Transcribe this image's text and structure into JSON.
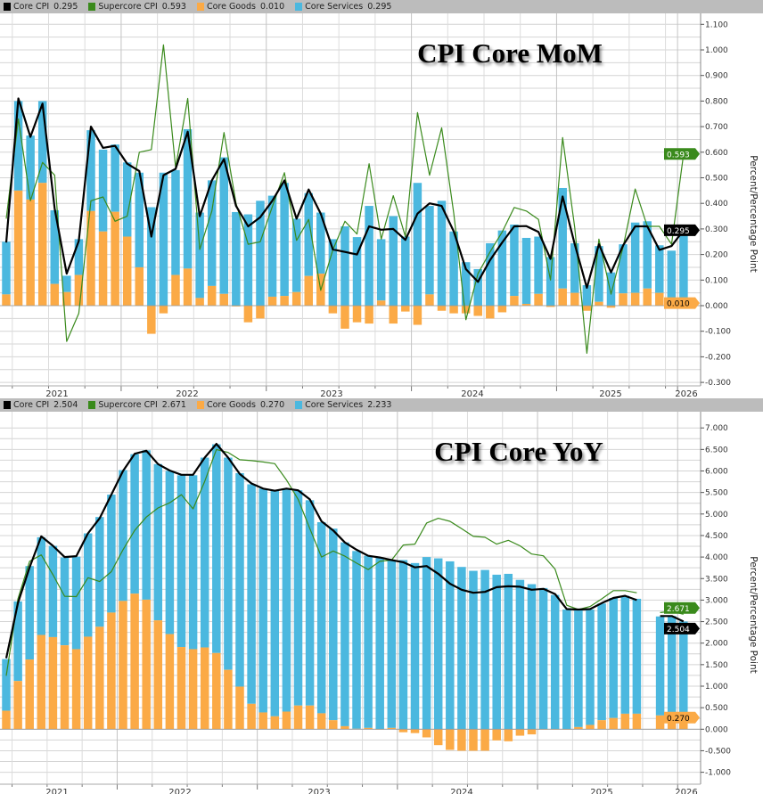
{
  "colors": {
    "core_cpi": "#000000",
    "supercore_cpi": "#3a8a1c",
    "core_goods": "#fbaa46",
    "core_services": "#4bb8df",
    "legend_bg": "#bcbcbc"
  },
  "chart_data": [
    {
      "type": "bar",
      "title": "CPI Core MoM",
      "ylabel": "Percent/Percentage Point",
      "ylim": [
        -0.3,
        1.1
      ],
      "yticks": [
        "1.100",
        "1.000",
        "0.900",
        "0.800",
        "0.700",
        "0.600",
        "0.500",
        "0.400",
        "0.300",
        "0.200",
        "0.100",
        "0.000",
        "-0.100",
        "-0.200",
        "-0.300"
      ],
      "xtick_labels": [
        "2021",
        "2022",
        "2023",
        "2024",
        "2025",
        "2026"
      ],
      "grid": true,
      "stacked": true,
      "legend": {
        "position": "top",
        "items": [
          {
            "name": "Core CPI",
            "value": "0.295"
          },
          {
            "name": "Supercore CPI",
            "value": "0.593"
          },
          {
            "name": "Core Goods",
            "value": "0.010"
          },
          {
            "name": "Core Services",
            "value": "0.295"
          }
        ]
      },
      "last_value_tags": {
        "supercore_cpi": "0.593",
        "core_cpi": "0.295",
        "core_goods": "0.010"
      },
      "x": [
        "2021-03",
        "2021-04",
        "2021-05",
        "2021-06",
        "2021-07",
        "2021-08",
        "2021-09",
        "2021-10",
        "2021-11",
        "2021-12",
        "2022-01",
        "2022-02",
        "2022-03",
        "2022-04",
        "2022-05",
        "2022-06",
        "2022-07",
        "2022-08",
        "2022-09",
        "2022-10",
        "2022-11",
        "2022-12",
        "2023-01",
        "2023-02",
        "2023-03",
        "2023-04",
        "2023-05",
        "2023-06",
        "2023-07",
        "2023-08",
        "2023-09",
        "2023-10",
        "2023-11",
        "2023-12",
        "2024-01",
        "2024-02",
        "2024-03",
        "2024-04",
        "2024-05",
        "2024-06",
        "2024-07",
        "2024-08",
        "2024-09",
        "2024-10",
        "2024-11",
        "2024-12",
        "2025-01",
        "2025-02",
        "2025-03",
        "2025-04",
        "2025-05",
        "2025-06",
        "2025-07",
        "2025-08",
        "2025-09",
        "2025-12",
        "2026-01"
      ],
      "series": [
        {
          "name": "Core Goods",
          "kind": "bar",
          "values": [
            0.044,
            0.45,
            0.415,
            0.48,
            0.085,
            0.053,
            0.12,
            0.37,
            0.29,
            0.367,
            0.27,
            0.15,
            -0.11,
            -0.03,
            0.12,
            0.145,
            0.03,
            0.077,
            0.046,
            -0.003,
            -0.065,
            -0.05,
            0.035,
            0.038,
            0.053,
            0.116,
            0.125,
            -0.03,
            -0.09,
            -0.065,
            -0.07,
            0.02,
            -0.07,
            -0.023,
            -0.075,
            0.044,
            -0.02,
            -0.03,
            -0.03,
            -0.04,
            -0.05,
            -0.026,
            0.038,
            0.007,
            0.046,
            -0.005,
            0.067,
            0.05,
            -0.02,
            0.015,
            -0.008,
            0.048,
            0.05,
            0.067,
            0.05,
            0.01,
            0.01
          ]
        },
        {
          "name": "Core Services",
          "kind": "bar",
          "values": [
            0.206,
            0.35,
            0.25,
            0.32,
            0.288,
            0.064,
            0.14,
            0.316,
            0.32,
            0.263,
            0.29,
            0.37,
            0.385,
            0.52,
            0.41,
            0.545,
            0.334,
            0.413,
            0.534,
            0.366,
            0.357,
            0.41,
            0.395,
            0.442,
            0.287,
            0.324,
            0.239,
            0.26,
            0.31,
            0.268,
            0.39,
            0.24,
            0.35,
            0.27,
            0.48,
            0.346,
            0.41,
            0.29,
            0.17,
            0.143,
            0.244,
            0.294,
            0.279,
            0.258,
            0.224,
            0.19,
            0.393,
            0.194,
            0.08,
            0.218,
            0.13,
            0.192,
            0.275,
            0.263,
            0.186,
            0.205,
            0.295
          ]
        },
        {
          "name": "Core CPI",
          "kind": "line",
          "values": [
            0.247,
            0.81,
            0.66,
            0.79,
            0.38,
            0.125,
            0.253,
            0.7,
            0.617,
            0.625,
            0.555,
            0.526,
            0.27,
            0.51,
            0.535,
            0.68,
            0.35,
            0.49,
            0.573,
            0.39,
            0.31,
            0.346,
            0.41,
            0.49,
            0.34,
            0.454,
            0.36,
            0.22,
            0.21,
            0.2,
            0.31,
            0.297,
            0.3,
            0.257,
            0.36,
            0.4,
            0.39,
            0.29,
            0.143,
            0.093,
            0.178,
            0.247,
            0.31,
            0.311,
            0.288,
            0.183,
            0.427,
            0.24,
            0.07,
            0.24,
            0.13,
            0.236,
            0.31,
            0.31,
            0.218,
            0.233,
            0.295
          ]
        },
        {
          "name": "Supercore CPI",
          "kind": "line",
          "values": [
            0.34,
            0.73,
            0.41,
            0.56,
            0.51,
            -0.14,
            -0.03,
            0.41,
            0.425,
            0.33,
            0.35,
            0.6,
            0.61,
            1.02,
            0.54,
            0.81,
            0.22,
            0.37,
            0.677,
            0.4,
            0.24,
            0.25,
            0.387,
            0.52,
            0.255,
            0.337,
            0.06,
            0.218,
            0.33,
            0.28,
            0.555,
            0.26,
            0.43,
            0.27,
            0.755,
            0.51,
            0.695,
            0.36,
            -0.055,
            0.125,
            0.21,
            0.288,
            0.384,
            0.37,
            0.337,
            0.1,
            0.657,
            0.305,
            -0.186,
            0.26,
            0.045,
            0.23,
            0.456,
            0.31,
            0.31,
            0.24,
            0.593
          ]
        }
      ]
    },
    {
      "type": "bar",
      "title": "CPI Core YoY",
      "ylabel": "Percent/Percentage Point",
      "ylim": [
        -1.0,
        7.0
      ],
      "yticks": [
        "7.000",
        "6.500",
        "6.000",
        "5.500",
        "5.000",
        "4.500",
        "4.000",
        "3.500",
        "3.000",
        "2.500",
        "2.000",
        "1.500",
        "1.000",
        "0.500",
        "0.000",
        "-0.500",
        "-1.000"
      ],
      "xtick_labels": [
        "2021",
        "2022",
        "2023",
        "2024",
        "2025",
        "2026"
      ],
      "grid": true,
      "stacked": true,
      "legend": {
        "position": "top",
        "items": [
          {
            "name": "Core CPI",
            "value": "2.504"
          },
          {
            "name": "Supercore CPI",
            "value": "2.671"
          },
          {
            "name": "Core Goods",
            "value": "0.270"
          },
          {
            "name": "Core Services",
            "value": "2.233"
          }
        ]
      },
      "last_value_tags": {
        "supercore_cpi": "2.671",
        "core_cpi": "2.504",
        "core_goods": "0.270"
      },
      "x": [
        "2021-03",
        "2021-04",
        "2021-05",
        "2021-06",
        "2021-07",
        "2021-08",
        "2021-09",
        "2021-10",
        "2021-11",
        "2021-12",
        "2022-01",
        "2022-02",
        "2022-03",
        "2022-04",
        "2022-05",
        "2022-06",
        "2022-07",
        "2022-08",
        "2022-09",
        "2022-10",
        "2022-11",
        "2022-12",
        "2023-01",
        "2023-02",
        "2023-03",
        "2023-04",
        "2023-05",
        "2023-06",
        "2023-07",
        "2023-08",
        "2023-09",
        "2023-10",
        "2023-11",
        "2023-12",
        "2024-01",
        "2024-02",
        "2024-03",
        "2024-04",
        "2024-05",
        "2024-06",
        "2024-07",
        "2024-08",
        "2024-09",
        "2024-10",
        "2024-11",
        "2024-12",
        "2025-01",
        "2025-02",
        "2025-03",
        "2025-04",
        "2025-05",
        "2025-06",
        "2025-07",
        "2025-08",
        "2025-09",
        "2025-10",
        "2025-11",
        "2025-12",
        "2026-01"
      ],
      "series": [
        {
          "name": "Core Goods",
          "kind": "bar",
          "values": [
            0.43,
            1.12,
            1.62,
            2.19,
            2.14,
            1.95,
            1.86,
            2.15,
            2.38,
            2.71,
            2.98,
            3.15,
            3.01,
            2.53,
            2.21,
            1.91,
            1.86,
            1.9,
            1.77,
            1.38,
            0.99,
            0.59,
            0.39,
            0.3,
            0.41,
            0.55,
            0.55,
            0.37,
            0.21,
            0.07,
            0.01,
            0.03,
            0.0,
            0.03,
            -0.07,
            -0.09,
            -0.19,
            -0.37,
            -0.48,
            -0.5,
            -0.5,
            -0.5,
            -0.26,
            -0.28,
            -0.15,
            -0.12,
            -0.01,
            -0.01,
            0.0,
            0.05,
            0.1,
            0.21,
            0.26,
            0.36,
            0.36,
            null,
            0.32,
            0.34,
            0.27
          ]
        },
        {
          "name": "Core Services",
          "kind": "bar",
          "values": [
            1.2,
            1.85,
            2.17,
            2.27,
            2.12,
            2.04,
            2.15,
            2.4,
            2.55,
            2.74,
            3.04,
            3.24,
            3.47,
            3.63,
            3.79,
            3.99,
            4.04,
            4.41,
            4.85,
            4.93,
            4.96,
            5.1,
            5.2,
            5.24,
            5.18,
            5.0,
            4.77,
            4.44,
            4.45,
            4.27,
            4.13,
            4.0,
            3.99,
            3.9,
            3.93,
            3.86,
            4.0,
            3.97,
            3.9,
            3.77,
            3.68,
            3.7,
            3.59,
            3.61,
            3.47,
            3.37,
            3.28,
            3.12,
            2.78,
            2.73,
            2.68,
            2.71,
            2.79,
            2.74,
            2.67,
            null,
            2.3,
            2.29,
            2.233
          ]
        },
        {
          "name": "Core CPI",
          "kind": "line",
          "values": [
            1.65,
            2.93,
            3.76,
            4.48,
            4.26,
            4.0,
            4.02,
            4.55,
            4.9,
            5.45,
            6.0,
            6.4,
            6.47,
            6.16,
            6.01,
            5.91,
            5.91,
            6.31,
            6.63,
            6.31,
            5.93,
            5.71,
            5.59,
            5.54,
            5.59,
            5.55,
            5.34,
            4.83,
            4.62,
            4.34,
            4.17,
            4.03,
            3.99,
            3.93,
            3.88,
            3.76,
            3.79,
            3.61,
            3.38,
            3.24,
            3.17,
            3.19,
            3.3,
            3.32,
            3.31,
            3.24,
            3.26,
            3.14,
            2.79,
            2.78,
            2.79,
            2.93,
            3.05,
            3.1,
            3.0,
            null,
            2.63,
            2.63,
            2.504
          ]
        },
        {
          "name": "Supercore CPI",
          "kind": "line",
          "values": [
            1.24,
            3.03,
            3.9,
            4.05,
            3.59,
            3.09,
            3.08,
            3.52,
            3.43,
            3.66,
            4.17,
            4.62,
            4.93,
            5.14,
            5.26,
            5.45,
            5.12,
            5.76,
            6.5,
            6.43,
            6.26,
            6.24,
            6.21,
            6.17,
            5.79,
            5.34,
            4.66,
            4.0,
            4.14,
            4.02,
            3.86,
            3.71,
            3.9,
            3.93,
            4.28,
            4.3,
            4.79,
            4.9,
            4.83,
            4.66,
            4.48,
            4.46,
            4.3,
            4.39,
            4.26,
            4.07,
            4.03,
            3.72,
            2.88,
            2.78,
            2.85,
            3.03,
            3.22,
            3.22,
            3.17,
            null,
            2.71,
            2.74,
            2.671
          ]
        }
      ]
    }
  ]
}
